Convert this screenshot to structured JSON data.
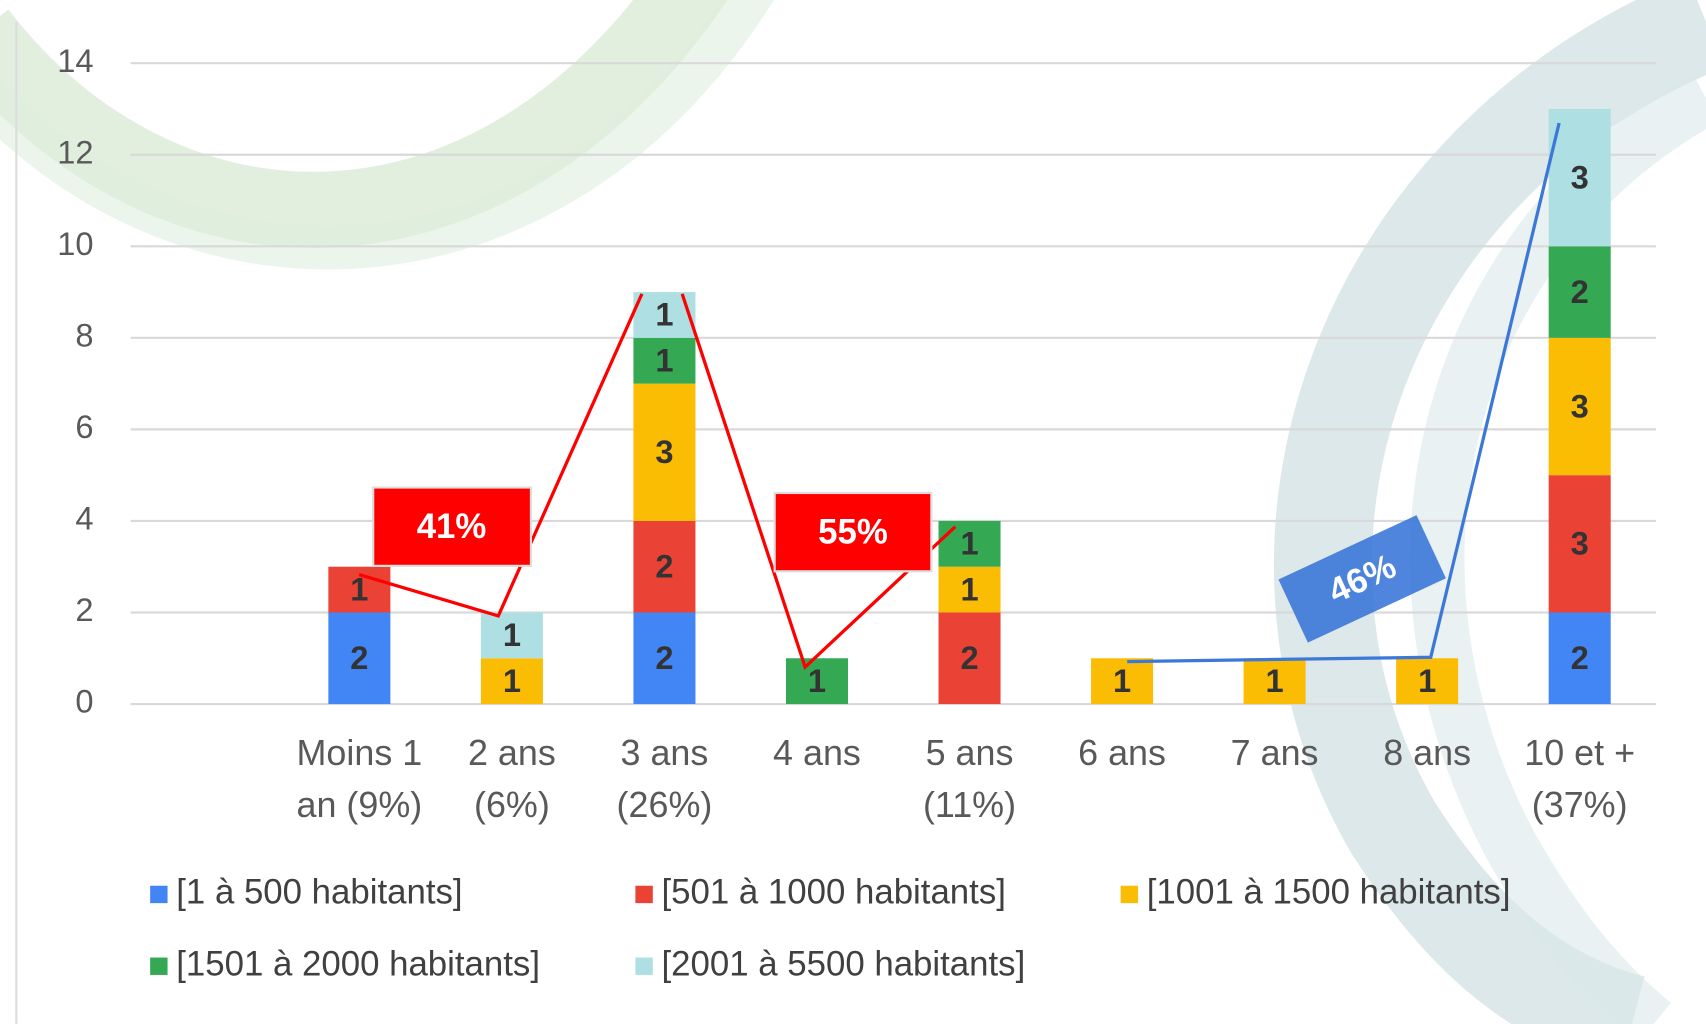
{
  "chart_data": {
    "type": "stacked_bar",
    "categories": [
      null,
      "Moins 1 an (9%)",
      "2 ans (6%)",
      "3 ans (26%)",
      "4 ans",
      "5 ans (11%)",
      "6 ans",
      "7 ans",
      "8 ans",
      "10 et + (37%)"
    ],
    "series": [
      {
        "name": "[1 à 500 habitants]",
        "color": "#4285f4",
        "values": [
          null,
          2,
          null,
          2,
          null,
          null,
          null,
          null,
          null,
          2
        ]
      },
      {
        "name": "[501 à 1000 habitants]",
        "color": "#ea4335",
        "values": [
          null,
          1,
          null,
          2,
          null,
          2,
          null,
          null,
          null,
          3
        ]
      },
      {
        "name": "[1001 à 1500 habitants]",
        "color": "#fbbc04",
        "values": [
          null,
          null,
          1,
          3,
          null,
          1,
          1,
          1,
          1,
          3
        ]
      },
      {
        "name": "[1501 à 2000 habitants]",
        "color": "#34a853",
        "values": [
          null,
          null,
          null,
          1,
          1,
          1,
          null,
          null,
          null,
          2
        ]
      },
      {
        "name": "[2001 à 5500 habitants]",
        "color": "#aedfe3",
        "values": [
          null,
          null,
          1,
          1,
          null,
          null,
          null,
          null,
          null,
          3
        ]
      }
    ],
    "ylim": [
      0,
      14
    ],
    "yticks": [
      0,
      2,
      4,
      6,
      8,
      10,
      12,
      14
    ],
    "grid": true,
    "annotations": [
      "41%",
      "55%",
      "46%"
    ]
  }
}
